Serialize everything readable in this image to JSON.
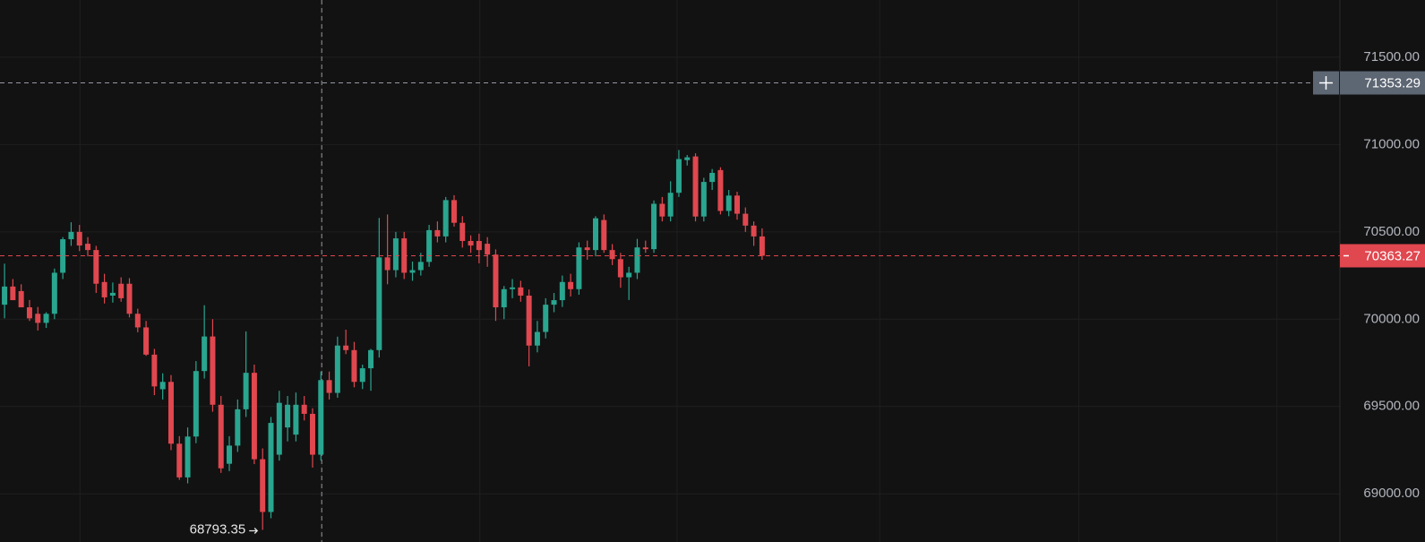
{
  "chart_data": {
    "type": "candlestick",
    "open": [
      70083,
      70187,
      70161,
      70068,
      70031,
      69979,
      70031,
      70266,
      70458,
      70500,
      70432,
      70396,
      70213,
      70135,
      70203,
      70203,
      70031,
      69953,
      69797,
      69599,
      69641,
      69287,
      69094,
      69328,
      69703,
      69901,
      69510,
      69172,
      69276,
      69484,
      69693,
      69198,
      68896,
      69224,
      69380,
      69339,
      69510,
      69458,
      69224,
      69651,
      69578,
      69849,
      69823,
      69641,
      69719,
      69823,
      70354,
      70281,
      70463,
      70266,
      70281,
      70328,
      70510,
      70474,
      70682,
      70552,
      70448,
      70448,
      70432,
      70370,
      70068,
      70172,
      70182,
      70135,
      69849,
      69927,
      70083,
      70109,
      70213,
      70172,
      70411,
      70396,
      70568,
      70396,
      70344,
      70240,
      70266,
      70411,
      70401,
      70661,
      70588,
      70724,
      70911,
      70932,
      70588,
      70786,
      70854,
      70620,
      70708,
      70604,
      70536,
      70474
    ],
    "high": [
      70318,
      70230,
      70200,
      70110,
      70070,
      70040,
      70290,
      70470,
      70555,
      70540,
      70470,
      70420,
      70260,
      70210,
      70240,
      70235,
      70060,
      69990,
      69830,
      69690,
      69680,
      69330,
      69380,
      69760,
      70080,
      70000,
      69560,
      69330,
      69540,
      69930,
      69740,
      69260,
      69440,
      69590,
      69560,
      69580,
      69560,
      69490,
      69700,
      69700,
      69900,
      69940,
      69870,
      69740,
      69830,
      70580,
      70600,
      70500,
      70500,
      70330,
      70380,
      70540,
      70560,
      70700,
      70710,
      70590,
      70480,
      70490,
      70470,
      70400,
      70190,
      70230,
      70220,
      70170,
      69990,
      70120,
      70150,
      70250,
      70260,
      70440,
      70450,
      70590,
      70600,
      70430,
      70380,
      70300,
      70460,
      70450,
      70680,
      70700,
      70790,
      70969,
      70940,
      70950,
      70810,
      70860,
      70870,
      70740,
      70730,
      70640,
      70560,
      70520
    ],
    "low": [
      70005,
      70120,
      70080,
      69990,
      69935,
      69950,
      70000,
      70230,
      70420,
      70390,
      70360,
      70150,
      70090,
      70095,
      70100,
      70010,
      69925,
      69790,
      69565,
      69540,
      69250,
      69080,
      69060,
      69290,
      69660,
      69470,
      69120,
      69130,
      69240,
      69440,
      69170,
      68793.35,
      68860,
      69190,
      69300,
      69300,
      69420,
      69150,
      69190,
      69540,
      69550,
      69800,
      69610,
      69600,
      69590,
      69780,
      70200,
      70240,
      70230,
      70220,
      70250,
      70300,
      70440,
      70440,
      70530,
      70410,
      70380,
      70320,
      70300,
      69990,
      70000,
      70120,
      70100,
      69730,
      69810,
      69890,
      70040,
      70070,
      70130,
      70140,
      70340,
      70360,
      70380,
      70310,
      70180,
      70110,
      70230,
      70380,
      70380,
      70560,
      70560,
      70700,
      70880,
      70560,
      70560,
      70740,
      70600,
      70590,
      70570,
      70500,
      70420,
      70340
    ],
    "close": [
      70187,
      70109,
      70068,
      70005,
      69979,
      70031,
      70266,
      70458,
      70500,
      70422,
      70396,
      70203,
      70125,
      70151,
      70120,
      70031,
      69953,
      69797,
      69615,
      69641,
      69287,
      69094,
      69328,
      69703,
      69901,
      69510,
      69146,
      69276,
      69484,
      69693,
      69198,
      68896,
      69406,
      69521,
      69510,
      69510,
      69458,
      69224,
      69651,
      69578,
      69849,
      69823,
      69641,
      69719,
      69823,
      70354,
      70281,
      70463,
      70266,
      70281,
      70328,
      70510,
      70474,
      70682,
      70552,
      70448,
      70422,
      70396,
      70370,
      70068,
      70172,
      70182,
      70135,
      69849,
      69927,
      70083,
      70109,
      70213,
      70172,
      70411,
      70396,
      70578,
      70396,
      70344,
      70240,
      70266,
      70411,
      70401,
      70661,
      70588,
      70724,
      70917,
      70927,
      70588,
      70786,
      70838,
      70620,
      70708,
      70604,
      70536,
      70474,
      70363.27
    ],
    "up_color": "#2aa58f",
    "down_color": "#e0474f",
    "ylim": [
      68724,
      71828
    ],
    "yticks": [
      {
        "value": 69000,
        "label": "69000.00"
      },
      {
        "value": 69500,
        "label": "69500.00"
      },
      {
        "value": 70000,
        "label": "70000.00"
      },
      {
        "value": 70500,
        "label": "70500.00"
      },
      {
        "value": 71000,
        "label": "71000.00"
      },
      {
        "value": 71500,
        "label": "71500.00"
      }
    ],
    "crosshair_price": 71353.29,
    "grid": true
  }
}
